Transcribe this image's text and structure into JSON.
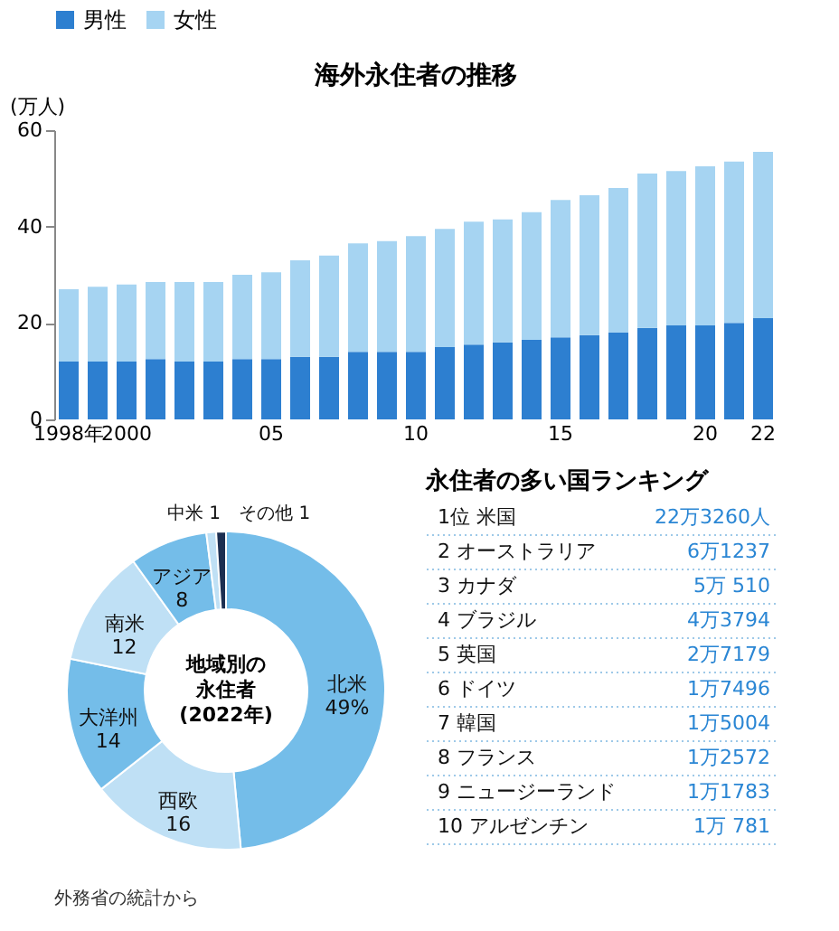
{
  "chart_data": [
    {
      "type": "bar",
      "title": "海外永住者の推移",
      "ylabel": "(万人)",
      "stacked": true,
      "legend": "top",
      "grid": false,
      "categories": [
        "1998年",
        null,
        "2000",
        null,
        null,
        null,
        null,
        "05",
        null,
        null,
        null,
        null,
        "10",
        null,
        null,
        null,
        null,
        "15",
        null,
        null,
        null,
        null,
        "20",
        null,
        "22"
      ],
      "series": [
        {
          "name": "男性",
          "color": "#2d7fd0",
          "values": [
            12,
            12,
            12,
            12.5,
            12,
            12,
            12.5,
            12.5,
            13,
            13,
            14,
            14,
            14,
            15,
            15.5,
            16,
            16.5,
            17,
            17.5,
            18,
            19,
            19.5,
            19.5,
            20,
            21
          ]
        },
        {
          "name": "女性",
          "color": "#a6d4f2",
          "values": [
            15,
            15.5,
            16,
            16,
            16.5,
            16.5,
            17.5,
            18,
            20,
            21,
            22.5,
            23,
            24,
            24.5,
            25.5,
            25.5,
            26.5,
            28.5,
            29,
            30,
            32,
            32,
            33,
            33.5,
            34.5
          ]
        }
      ],
      "ylim": [
        0,
        60
      ],
      "yticks": [
        0,
        20,
        40,
        60
      ]
    },
    {
      "type": "donut",
      "title": [
        "地域別の",
        "永住者",
        "(2022年)"
      ],
      "annotations": [
        "外務省の統計から"
      ],
      "categories": [
        "北米",
        "西欧",
        "大洋州",
        "南米",
        "アジア",
        "中米",
        "その他"
      ],
      "values": [
        49,
        16,
        14,
        12,
        8,
        1,
        1
      ],
      "value_labels": [
        "49%",
        "16",
        "14",
        "12",
        "8",
        "1",
        "1"
      ],
      "colors": [
        "#74bde9",
        "#bfe0f5",
        "#74bde9",
        "#bfe0f5",
        "#74bde9",
        "#bfe0f5",
        "#1c2f52"
      ]
    },
    {
      "type": "other",
      "title": "永住者の多い国ランキング",
      "cell_labels": [
        [
          "1位 米国",
          "22万3260人"
        ],
        [
          "2 オーストラリア",
          "6万1237"
        ],
        [
          "3 カナダ",
          "5万 510"
        ],
        [
          "4 ブラジル",
          "4万3794"
        ],
        [
          "5 英国",
          "2万7179"
        ],
        [
          "6 ドイツ",
          "1万7496"
        ],
        [
          "7 韓国",
          "1万5004"
        ],
        [
          "8 フランス",
          "1万2572"
        ],
        [
          "9 ニュージーランド",
          "1万1783"
        ],
        [
          "10 アルゼンチン",
          "1万 781"
        ]
      ]
    }
  ]
}
